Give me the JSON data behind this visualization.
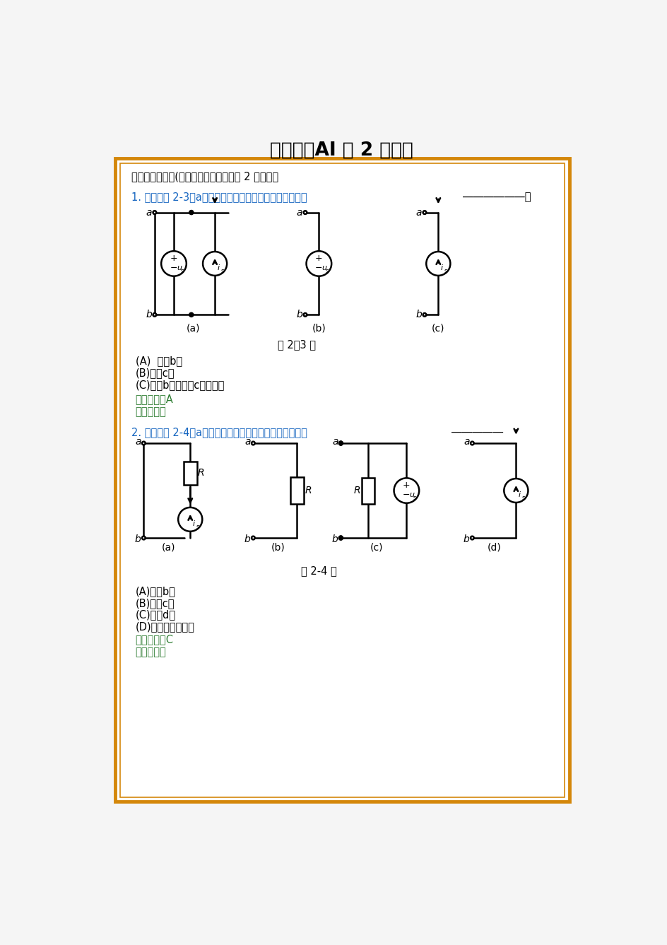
{
  "title": "电路分析AI 第 2 次作业",
  "section1": "一、单项选择题(只有一个选项正确，共 2 道小题）",
  "q1_blue": "1. 电路如图 2-3（a）所示。对外电路的等效电路正确的是",
  "q1_blank": "――――――。",
  "fig1_cap": "题 2－3 图",
  "q1_optA": "(A)  图（b）",
  "q1_optB": "(B)图（c）",
  "q1_optC": "(C)图（b）、图（c）均不是",
  "q1_ans": "正确答案：A",
  "q1_ref": "解答参考：",
  "q2_blue": "2. 电路如图 2-4（a）所示。对外电路的等效电路正确的是",
  "q2_blank": "―――――",
  "fig2_cap": "题 2-4 图",
  "q2_optA": "(A)图（b）",
  "q2_optB": "(B)图（c）",
  "q2_optC": "(C)图（d）",
  "q2_optD": "(D)以上三个均不是",
  "q2_ans": "正确答案：C",
  "q2_ref": "解答参考：",
  "bg": "#ffffff",
  "border_outer": "#D4870A",
  "border_inner": "#D4870A",
  "blue": "#1565C0",
  "green": "#2E7D32",
  "black": "#000000",
  "red2": "#C0392B"
}
